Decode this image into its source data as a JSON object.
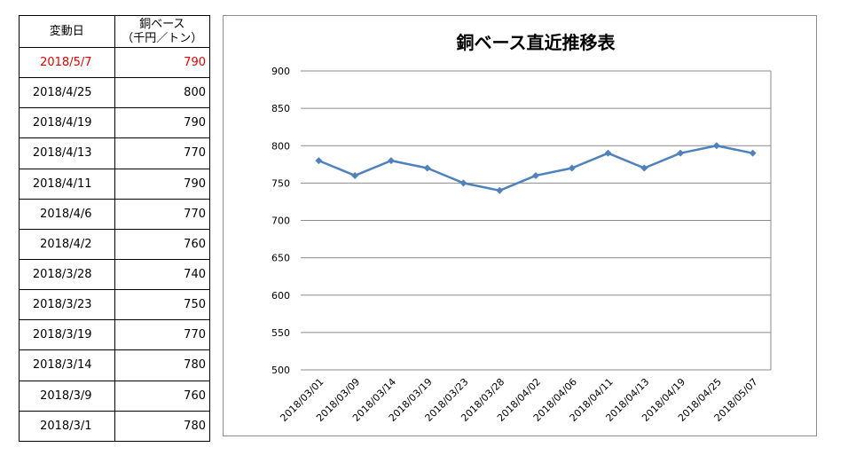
{
  "table": {
    "header_date": "変動日",
    "header_value_line1": "銅ベース",
    "header_value_line2": "（千円／トン）",
    "rows": [
      {
        "date": "2018/5/7",
        "value": "790"
      },
      {
        "date": "2018/4/25",
        "value": "800"
      },
      {
        "date": "2018/4/19",
        "value": "790"
      },
      {
        "date": "2018/4/13",
        "value": "770"
      },
      {
        "date": "2018/4/11",
        "value": "790"
      },
      {
        "date": "2018/4/6",
        "value": "770"
      },
      {
        "date": "2018/4/2",
        "value": "760"
      },
      {
        "date": "2018/3/28",
        "value": "740"
      },
      {
        "date": "2018/3/23",
        "value": "750"
      },
      {
        "date": "2018/3/19",
        "value": "770"
      },
      {
        "date": "2018/3/14",
        "value": "780"
      },
      {
        "date": "2018/3/9",
        "value": "760"
      },
      {
        "date": "2018/3/1",
        "value": "780"
      }
    ],
    "highlight_color": "#e60000"
  },
  "chart_data": {
    "type": "line",
    "title": "銅ベース直近推移表",
    "xlabel": "",
    "ylabel": "",
    "categories": [
      "2018/03/01",
      "2018/03/09",
      "2018/03/14",
      "2018/03/19",
      "2018/03/23",
      "2018/03/28",
      "2018/04/02",
      "2018/04/06",
      "2018/04/11",
      "2018/04/13",
      "2018/04/19",
      "2018/04/25",
      "2018/05/07"
    ],
    "series": [
      {
        "values": [
          780,
          760,
          780,
          770,
          750,
          740,
          760,
          770,
          790,
          770,
          790,
          800,
          790
        ],
        "color": "#4f81bd"
      }
    ],
    "ylim": [
      500,
      900
    ],
    "yticks": [
      500,
      550,
      600,
      650,
      700,
      750,
      800,
      850,
      900
    ],
    "grid": true,
    "legend": "none"
  }
}
